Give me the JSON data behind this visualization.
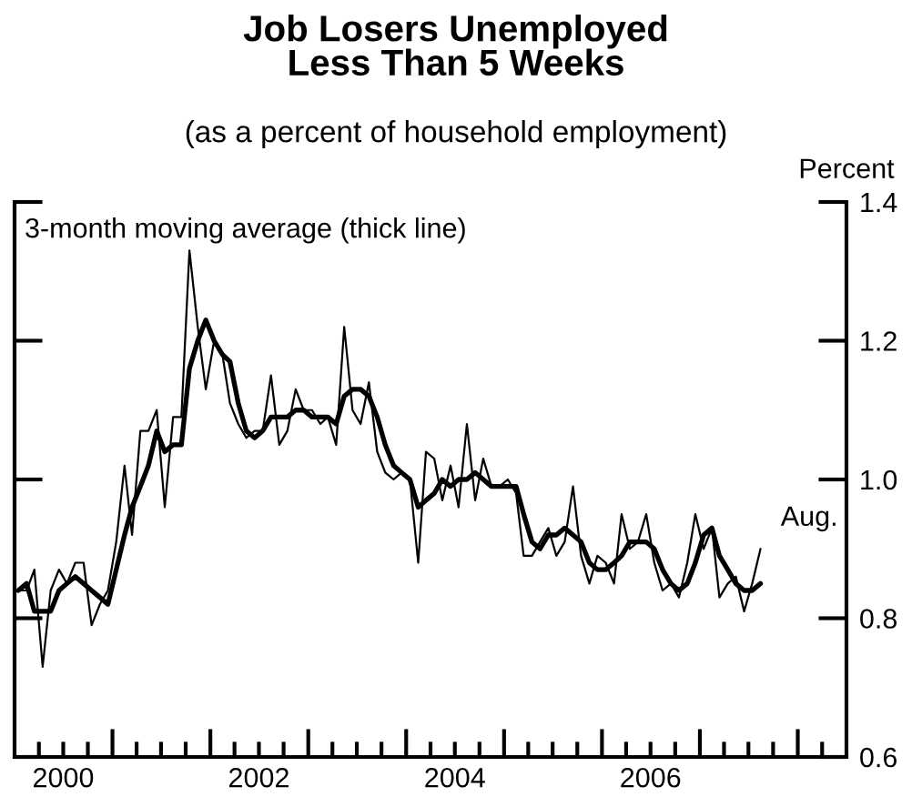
{
  "chart_data": {
    "type": "line",
    "title": "Job Losers Unemployed\nLess Than 5 Weeks",
    "subtitle": "(as a percent of household employment)",
    "ylabel": "Percent",
    "annotations": [
      "3-month moving average (thick line)",
      {
        "text": "Aug.",
        "x": "2007-08-15",
        "y": 0.9
      }
    ],
    "x": [
      "2000-01-15",
      "2000-02-15",
      "2000-03-15",
      "2000-04-15",
      "2000-05-15",
      "2000-06-15",
      "2000-07-15",
      "2000-08-15",
      "2000-09-15",
      "2000-10-15",
      "2000-11-15",
      "2000-12-15",
      "2001-01-15",
      "2001-02-15",
      "2001-03-15",
      "2001-04-15",
      "2001-05-15",
      "2001-06-15",
      "2001-07-15",
      "2001-08-15",
      "2001-09-15",
      "2001-10-15",
      "2001-11-15",
      "2001-12-15",
      "2002-01-15",
      "2002-02-15",
      "2002-03-15",
      "2002-04-15",
      "2002-05-15",
      "2002-06-15",
      "2002-07-15",
      "2002-08-15",
      "2002-09-15",
      "2002-10-15",
      "2002-11-15",
      "2002-12-15",
      "2003-01-15",
      "2003-02-15",
      "2003-03-15",
      "2003-04-15",
      "2003-05-15",
      "2003-06-15",
      "2003-07-15",
      "2003-08-15",
      "2003-09-15",
      "2003-10-15",
      "2003-11-15",
      "2003-12-15",
      "2004-01-15",
      "2004-02-15",
      "2004-03-15",
      "2004-04-15",
      "2004-05-15",
      "2004-06-15",
      "2004-07-15",
      "2004-08-15",
      "2004-09-15",
      "2004-10-15",
      "2004-11-15",
      "2004-12-15",
      "2005-01-15",
      "2005-02-15",
      "2005-03-15",
      "2005-04-15",
      "2005-05-15",
      "2005-06-15",
      "2005-07-15",
      "2005-08-15",
      "2005-09-15",
      "2005-10-15",
      "2005-11-15",
      "2005-12-15",
      "2006-01-15",
      "2006-02-15",
      "2006-03-15",
      "2006-04-15",
      "2006-05-15",
      "2006-06-15",
      "2006-07-15",
      "2006-08-15",
      "2006-09-15",
      "2006-10-15",
      "2006-11-15",
      "2006-12-15",
      "2007-01-15",
      "2007-02-15",
      "2007-03-15",
      "2007-04-15",
      "2007-05-15",
      "2007-06-15",
      "2007-07-15",
      "2007-08-15"
    ],
    "series": [
      {
        "color": "#000000",
        "values": [
          0.84,
          0.84,
          0.87,
          0.73,
          0.84,
          0.87,
          0.85,
          0.88,
          0.88,
          0.79,
          0.82,
          0.84,
          0.91,
          1.02,
          0.92,
          1.07,
          1.07,
          1.1,
          0.96,
          1.09,
          1.09,
          1.33,
          1.22,
          1.13,
          1.2,
          1.18,
          1.11,
          1.08,
          1.06,
          1.07,
          1.07,
          1.15,
          1.05,
          1.07,
          1.13,
          1.1,
          1.1,
          1.08,
          1.09,
          1.05,
          1.22,
          1.1,
          1.08,
          1.14,
          1.04,
          1.01,
          1.0,
          1.01,
          1.0,
          0.88,
          1.04,
          1.03,
          0.97,
          1.02,
          0.96,
          1.08,
          0.97,
          1.03,
          0.99,
          0.99,
          1.0,
          0.98,
          0.89,
          0.89,
          0.91,
          0.93,
          0.89,
          0.91,
          0.99,
          0.89,
          0.85,
          0.89,
          0.88,
          0.85,
          0.95,
          0.9,
          0.91,
          0.95,
          0.88,
          0.84,
          0.85,
          0.83,
          0.88,
          0.95,
          0.9,
          0.93,
          0.83,
          0.85,
          0.86,
          0.81,
          0.85,
          0.9
        ]
      },
      {
        "color": "#000000",
        "values": [
          0.84,
          0.85,
          0.81,
          0.81,
          0.81,
          0.84,
          0.85,
          0.86,
          0.85,
          0.84,
          0.83,
          0.82,
          0.87,
          0.92,
          0.96,
          0.99,
          1.02,
          1.07,
          1.04,
          1.05,
          1.05,
          1.16,
          1.2,
          1.23,
          1.2,
          1.18,
          1.17,
          1.11,
          1.07,
          1.06,
          1.07,
          1.09,
          1.09,
          1.09,
          1.1,
          1.1,
          1.09,
          1.09,
          1.09,
          1.08,
          1.12,
          1.13,
          1.13,
          1.12,
          1.09,
          1.05,
          1.02,
          1.01,
          1.0,
          0.96,
          0.97,
          0.98,
          1.0,
          0.99,
          1.0,
          1.0,
          1.01,
          1.0,
          0.99,
          0.99,
          0.99,
          0.99,
          0.95,
          0.91,
          0.9,
          0.92,
          0.92,
          0.93,
          0.92,
          0.91,
          0.88,
          0.87,
          0.87,
          0.88,
          0.89,
          0.91,
          0.91,
          0.91,
          0.9,
          0.87,
          0.85,
          0.84,
          0.85,
          0.88,
          0.92,
          0.93,
          0.89,
          0.87,
          0.85,
          0.84,
          0.84,
          0.85
        ]
      }
    ],
    "xlim": [
      "2000-01-01",
      "2008-07-01"
    ],
    "xticks": [
      {
        "value": "2000-04-01",
        "label": null
      },
      {
        "value": "2000-07-01",
        "label": "2000"
      },
      {
        "value": "2000-10-01",
        "label": null
      },
      {
        "value": "2001-01-01",
        "label": null
      },
      {
        "value": "2001-04-01",
        "label": null
      },
      {
        "value": "2001-07-01",
        "label": null
      },
      {
        "value": "2001-10-01",
        "label": null
      },
      {
        "value": "2002-01-01",
        "label": null
      },
      {
        "value": "2002-04-01",
        "label": null
      },
      {
        "value": "2002-07-01",
        "label": "2002"
      },
      {
        "value": "2002-10-01",
        "label": null
      },
      {
        "value": "2003-01-01",
        "label": null
      },
      {
        "value": "2003-04-01",
        "label": null
      },
      {
        "value": "2003-07-01",
        "label": null
      },
      {
        "value": "2003-10-01",
        "label": null
      },
      {
        "value": "2004-01-01",
        "label": null
      },
      {
        "value": "2004-04-01",
        "label": null
      },
      {
        "value": "2004-07-01",
        "label": "2004"
      },
      {
        "value": "2004-10-01",
        "label": null
      },
      {
        "value": "2005-01-01",
        "label": null
      },
      {
        "value": "2005-04-01",
        "label": null
      },
      {
        "value": "2005-07-01",
        "label": null
      },
      {
        "value": "2005-10-01",
        "label": null
      },
      {
        "value": "2006-01-01",
        "label": null
      },
      {
        "value": "2006-04-01",
        "label": null
      },
      {
        "value": "2006-07-01",
        "label": "2006"
      },
      {
        "value": "2006-10-01",
        "label": null
      },
      {
        "value": "2007-01-01",
        "label": null
      },
      {
        "value": "2007-04-01",
        "label": null
      },
      {
        "value": "2007-07-01",
        "label": null
      },
      {
        "value": "2007-10-01",
        "label": null
      },
      {
        "value": "2008-01-01",
        "label": null
      },
      {
        "value": "2008-04-01",
        "label": null
      }
    ],
    "ylim": [
      0.6,
      1.4
    ],
    "yticks": [
      0.6,
      0.8,
      {
        "value": 1.0,
        "label": "1.0"
      },
      1.2,
      1.4
    ],
    "grid": false,
    "legend": false
  }
}
